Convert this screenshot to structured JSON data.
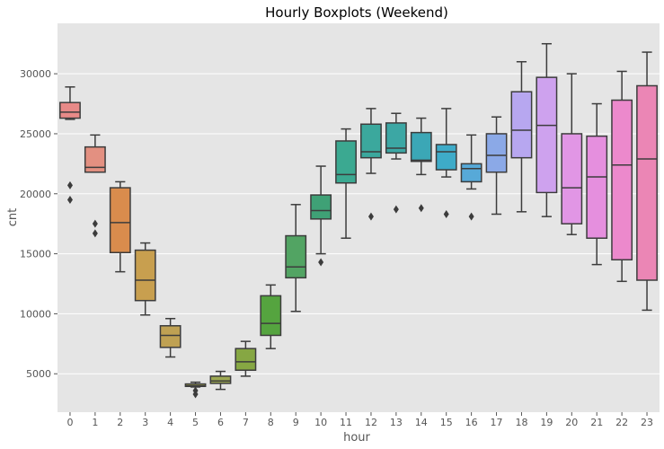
{
  "chart_data": {
    "type": "box",
    "title": "Hourly Boxplots (Weekend)",
    "xlabel": "hour",
    "ylabel": "cnt",
    "ylim": [
      1800,
      34200
    ],
    "yticks": [
      5000,
      10000,
      15000,
      20000,
      25000,
      30000
    ],
    "grid": true,
    "background": "#e5e5e5",
    "edge_color": "#3c3c3c",
    "categories": [
      "0",
      "1",
      "2",
      "3",
      "4",
      "5",
      "6",
      "7",
      "8",
      "9",
      "10",
      "11",
      "12",
      "13",
      "14",
      "15",
      "16",
      "17",
      "18",
      "19",
      "20",
      "21",
      "22",
      "23"
    ],
    "colors": [
      "#e88a88",
      "#e39081",
      "#d98c4d",
      "#c89f4f",
      "#bfa153",
      "#a7a852",
      "#9ca852",
      "#86a743",
      "#55a43f",
      "#52a463",
      "#3fa176",
      "#3ba991",
      "#3ba89d",
      "#3ca7a4",
      "#3ba7b6",
      "#3eabc8",
      "#57a9d8",
      "#8ba9e7",
      "#b7a7f0",
      "#cea2ee",
      "#e196e5",
      "#e58fde",
      "#ec89cc",
      "#eb86b5"
    ],
    "boxes": [
      {
        "whislo": 26200,
        "q1": 26300,
        "med": 26800,
        "q3": 27600,
        "whishi": 28900,
        "fliers": [
          20700,
          19500
        ]
      },
      {
        "whislo": 21800,
        "q1": 21800,
        "med": 22200,
        "q3": 23900,
        "whishi": 24900,
        "fliers": [
          17500,
          16700
        ]
      },
      {
        "whislo": 13500,
        "q1": 15100,
        "med": 17600,
        "q3": 20500,
        "whishi": 21000,
        "fliers": []
      },
      {
        "whislo": 9900,
        "q1": 11100,
        "med": 12800,
        "q3": 15300,
        "whishi": 15900,
        "fliers": []
      },
      {
        "whislo": 6400,
        "q1": 7200,
        "med": 8200,
        "q3": 9000,
        "whishi": 9600,
        "fliers": []
      },
      {
        "whislo": 3900,
        "q1": 3950,
        "med": 4000,
        "q3": 4150,
        "whishi": 4300,
        "fliers": [
          3600,
          3300
        ]
      },
      {
        "whislo": 3700,
        "q1": 4200,
        "med": 4400,
        "q3": 4800,
        "whishi": 5200,
        "fliers": []
      },
      {
        "whislo": 4800,
        "q1": 5300,
        "med": 6000,
        "q3": 7100,
        "whishi": 7700,
        "fliers": []
      },
      {
        "whislo": 7100,
        "q1": 8200,
        "med": 9200,
        "q3": 11500,
        "whishi": 12400,
        "fliers": []
      },
      {
        "whislo": 10200,
        "q1": 13000,
        "med": 13900,
        "q3": 16500,
        "whishi": 19100,
        "fliers": []
      },
      {
        "whislo": 15000,
        "q1": 17900,
        "med": 18600,
        "q3": 19900,
        "whishi": 22300,
        "fliers": [
          14300
        ]
      },
      {
        "whislo": 16300,
        "q1": 20900,
        "med": 21600,
        "q3": 24400,
        "whishi": 25400,
        "fliers": []
      },
      {
        "whislo": 21700,
        "q1": 23000,
        "med": 23500,
        "q3": 25800,
        "whishi": 27100,
        "fliers": [
          18100
        ]
      },
      {
        "whislo": 22900,
        "q1": 23400,
        "med": 23800,
        "q3": 25900,
        "whishi": 26700,
        "fliers": [
          18700
        ]
      },
      {
        "whislo": 21600,
        "q1": 22700,
        "med": 22800,
        "q3": 25100,
        "whishi": 26300,
        "fliers": [
          18800
        ]
      },
      {
        "whislo": 21400,
        "q1": 22000,
        "med": 23500,
        "q3": 24100,
        "whishi": 27100,
        "fliers": [
          18300
        ]
      },
      {
        "whislo": 20400,
        "q1": 21000,
        "med": 22100,
        "q3": 22500,
        "whishi": 24900,
        "fliers": [
          18100
        ]
      },
      {
        "whislo": 18300,
        "q1": 21800,
        "med": 23200,
        "q3": 25000,
        "whishi": 26400,
        "fliers": []
      },
      {
        "whislo": 18500,
        "q1": 23000,
        "med": 25300,
        "q3": 28500,
        "whishi": 31000,
        "fliers": []
      },
      {
        "whislo": 18100,
        "q1": 20100,
        "med": 25700,
        "q3": 29700,
        "whishi": 32500,
        "fliers": []
      },
      {
        "whislo": 16600,
        "q1": 17500,
        "med": 20500,
        "q3": 25000,
        "whishi": 30000,
        "fliers": []
      },
      {
        "whislo": 14100,
        "q1": 16300,
        "med": 21400,
        "q3": 24800,
        "whishi": 27500,
        "fliers": []
      },
      {
        "whislo": 12700,
        "q1": 14500,
        "med": 22400,
        "q3": 27800,
        "whishi": 30200,
        "fliers": []
      },
      {
        "whislo": 10300,
        "q1": 12800,
        "med": 22900,
        "q3": 29000,
        "whishi": 31800,
        "fliers": []
      }
    ]
  }
}
